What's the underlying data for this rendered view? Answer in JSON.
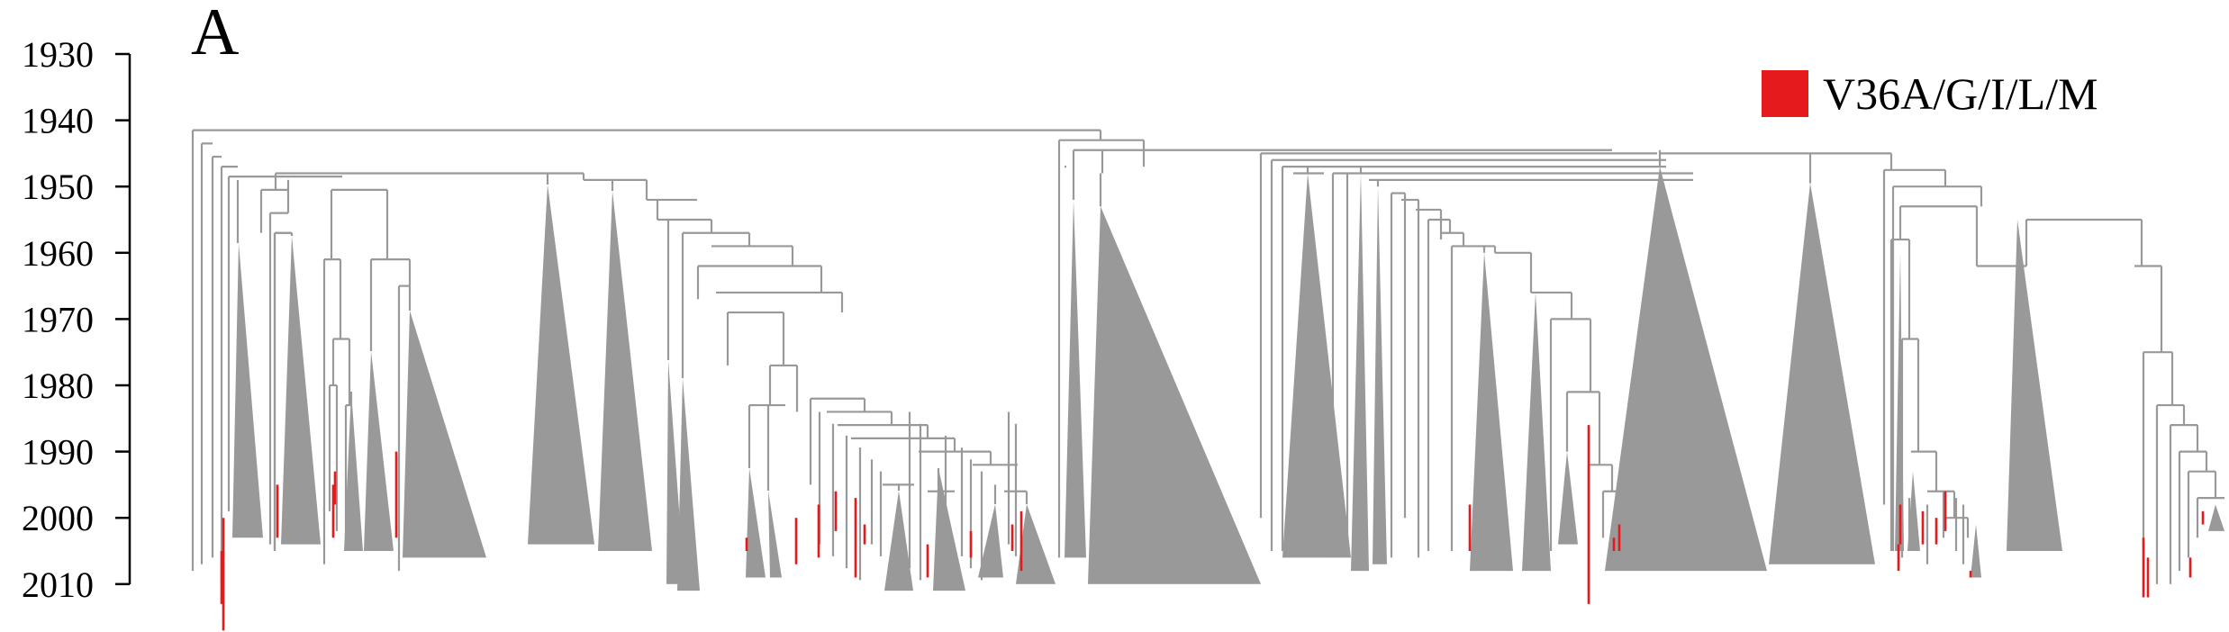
{
  "panel_label": "A",
  "colors": {
    "branch": "#999999",
    "clade": "#999999",
    "highlight": "#e41a1c",
    "axis": "#000000"
  },
  "chart_data": {
    "type": "phylogenetic-tree",
    "yaxis": {
      "ticks": [
        1930,
        1940,
        1950,
        1960,
        1970,
        1980,
        1990,
        2000,
        2010
      ],
      "range": [
        1930,
        2010
      ],
      "direction": "time increases downward"
    },
    "legend": [
      {
        "label": "V36A/G/I/L/M",
        "color": "#e41a1c"
      }
    ],
    "root_year": 1940,
    "major_split": {
      "left_node_year": 1941.5,
      "right_node_year": 1941
    },
    "collapsed_clades_count": 30,
    "highlighted_branch_count": 30,
    "legend_position": "top-right",
    "grid": false
  }
}
